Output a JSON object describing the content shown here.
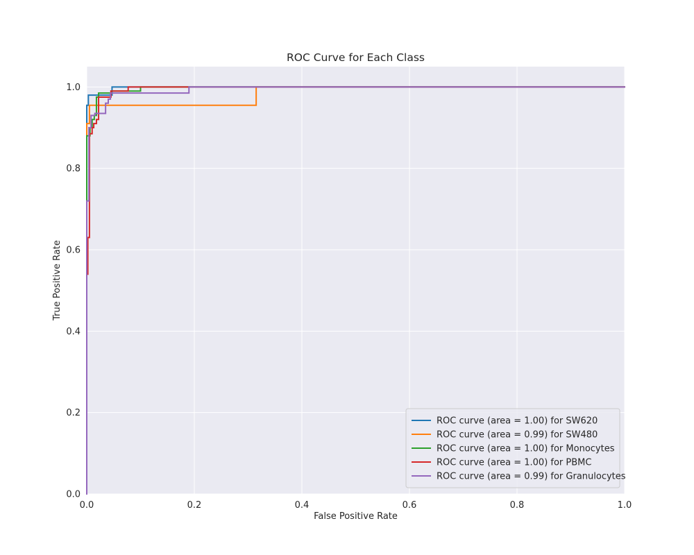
{
  "chart_data": {
    "type": "line",
    "title": "ROC Curve for Each Class",
    "xlabel": "False Positive Rate",
    "ylabel": "True Positive Rate",
    "xlim": [
      0.0,
      1.0
    ],
    "ylim": [
      0.0,
      1.05
    ],
    "xticks": [
      "0.0",
      "0.2",
      "0.4",
      "0.6",
      "0.8",
      "1.0"
    ],
    "yticks": [
      "0.0",
      "0.2",
      "0.4",
      "0.6",
      "0.8",
      "1.0"
    ],
    "grid": true,
    "legend_position": "lower-right",
    "series": [
      {
        "name": "ROC curve (area = 1.00) for SW620",
        "color": "#1f77b4",
        "x": [
          0.0,
          0.0,
          0.003,
          0.003,
          0.047,
          0.047,
          1.0
        ],
        "y": [
          0.0,
          0.955,
          0.955,
          0.98,
          0.98,
          1.0,
          1.0
        ]
      },
      {
        "name": "ROC curve (area = 0.99) for SW480",
        "color": "#ff7f0e",
        "x": [
          0.0,
          0.0,
          0.005,
          0.005,
          0.315,
          0.315,
          1.0
        ],
        "y": [
          0.0,
          0.91,
          0.91,
          0.955,
          0.955,
          1.0,
          1.0
        ]
      },
      {
        "name": "ROC curve (area = 1.00) for Monocytes",
        "color": "#2ca02c",
        "x": [
          0.0,
          0.0,
          0.006,
          0.006,
          0.01,
          0.01,
          0.014,
          0.014,
          0.018,
          0.018,
          0.022,
          0.022,
          0.045,
          0.045,
          0.1,
          0.1,
          1.0
        ],
        "y": [
          0.0,
          0.88,
          0.88,
          0.9,
          0.9,
          0.92,
          0.92,
          0.93,
          0.93,
          0.975,
          0.975,
          0.985,
          0.985,
          0.99,
          0.99,
          1.0,
          1.0
        ]
      },
      {
        "name": "ROC curve (area = 1.00) for PBMC",
        "color": "#d62728",
        "x": [
          0.0,
          0.0,
          0.002,
          0.002,
          0.005,
          0.005,
          0.01,
          0.01,
          0.013,
          0.013,
          0.018,
          0.018,
          0.022,
          0.022,
          0.045,
          0.045,
          0.077,
          0.077,
          0.19,
          0.19,
          1.0
        ],
        "y": [
          0.0,
          0.54,
          0.54,
          0.63,
          0.63,
          0.885,
          0.885,
          0.9,
          0.9,
          0.91,
          0.91,
          0.92,
          0.92,
          0.975,
          0.975,
          0.99,
          0.99,
          1.0,
          1.0,
          1.0,
          1.0
        ]
      },
      {
        "name": "ROC curve (area = 0.99) for Granulocytes",
        "color": "#9467bd",
        "x": [
          0.0,
          0.0,
          0.004,
          0.004,
          0.008,
          0.008,
          0.015,
          0.015,
          0.035,
          0.035,
          0.04,
          0.04,
          0.044,
          0.044,
          0.19,
          0.19,
          1.0
        ],
        "y": [
          0.0,
          0.72,
          0.72,
          0.9,
          0.9,
          0.93,
          0.93,
          0.935,
          0.935,
          0.96,
          0.96,
          0.97,
          0.97,
          0.985,
          0.985,
          1.0,
          1.0
        ]
      }
    ]
  }
}
